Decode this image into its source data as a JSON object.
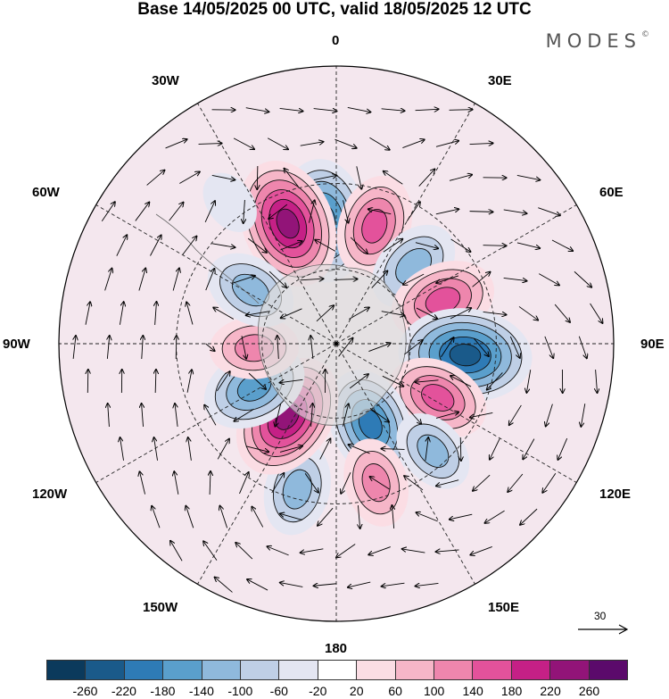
{
  "title": "Base 14/05/2025 00 UTC, valid 18/05/2025 12 UTC",
  "brand": "MODES",
  "brand_mark": "©",
  "longitude_labels": {
    "lon_0": "0",
    "lon_30e": "30E",
    "lon_60e": "60E",
    "lon_90e": "90E",
    "lon_120e": "120E",
    "lon_150e": "150E",
    "lon_180": "180",
    "lon_150w": "150W",
    "lon_120w": "120W",
    "lon_90w": "90W",
    "lon_60w": "60W",
    "lon_30w": "30W"
  },
  "reference_vector": "30",
  "colorbar": {
    "colors": [
      "#0b3a5c",
      "#1a5a8a",
      "#2e7bb6",
      "#5a9fcc",
      "#8fb9dc",
      "#bfcfe6",
      "#e4e6f2",
      "#ffffff",
      "#fbdde4",
      "#f6b6c8",
      "#ee86ad",
      "#e3529b",
      "#c52086",
      "#921478",
      "#5b0a6b"
    ],
    "tick_labels": [
      "-260",
      "-220",
      "-180",
      "-140",
      "-100",
      "-60",
      "-20",
      "20",
      "60",
      "100",
      "140",
      "180",
      "220",
      "260"
    ]
  },
  "map": {
    "projection": "south-polar-stereographic",
    "anomaly_centers": [
      {
        "name": "neg-30w-a",
        "lon": -6,
        "lat": -42,
        "value": -230
      },
      {
        "name": "pos-30w",
        "lon": -22,
        "lat": -40,
        "value": 250
      },
      {
        "name": "pos-30e",
        "lon": 18,
        "lat": -42,
        "value": 170
      },
      {
        "name": "neg-60e",
        "lon": 45,
        "lat": -47,
        "value": -150
      },
      {
        "name": "pos-60e",
        "lon": 68,
        "lat": -45,
        "value": 180
      },
      {
        "name": "neg-90e",
        "lon": 95,
        "lat": -40,
        "value": -260
      },
      {
        "name": "pos-120e",
        "lon": 118,
        "lat": -45,
        "value": 170
      },
      {
        "name": "neg-150e",
        "lon": 157,
        "lat": -55,
        "value": -200
      },
      {
        "name": "neg-150e-b",
        "lon": 138,
        "lat": -35,
        "value": -120
      },
      {
        "name": "pos-150e",
        "lon": 164,
        "lat": -35,
        "value": 130
      },
      {
        "name": "neg-180",
        "lon": -165,
        "lat": -33,
        "value": -140
      },
      {
        "name": "pos-150w",
        "lon": -146,
        "lat": -55,
        "value": 240
      },
      {
        "name": "neg-120w",
        "lon": -118,
        "lat": -53,
        "value": -180
      },
      {
        "name": "pos-90w",
        "lon": -93,
        "lat": -57,
        "value": 130
      },
      {
        "name": "neg-60w",
        "lon": -58,
        "lat": -50,
        "value": -140
      },
      {
        "name": "neg-30w-b",
        "lon": -37,
        "lat": -25,
        "value": -60
      }
    ]
  }
}
